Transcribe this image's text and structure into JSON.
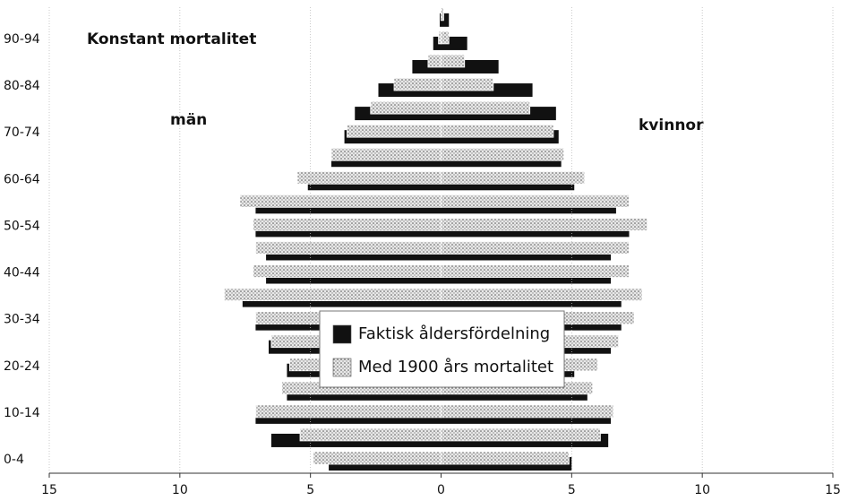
{
  "chart_data": {
    "type": "pyramid",
    "title": "Konstant mortalitet",
    "left_label": "män",
    "right_label": "kvinnor",
    "categories": [
      "0-4",
      null,
      "10-14",
      null,
      "20-24",
      null,
      "30-34",
      null,
      "40-44",
      null,
      "50-54",
      null,
      "60-64",
      null,
      "70-74",
      null,
      "80-84",
      null,
      "90-94",
      null
    ],
    "series": [
      {
        "name": "Faktisk åldersfördelning",
        "color": "#111111",
        "pattern": false,
        "men": [
          4.3,
          6.5,
          7.1,
          5.9,
          5.9,
          6.6,
          7.1,
          7.6,
          6.7,
          6.7,
          7.1,
          7.1,
          5.1,
          4.2,
          3.7,
          3.3,
          2.4,
          1.1,
          0.3,
          0.05
        ],
        "women": [
          5.0,
          6.4,
          6.5,
          5.6,
          5.1,
          6.5,
          6.9,
          6.9,
          6.5,
          6.5,
          7.2,
          6.7,
          5.1,
          4.6,
          4.5,
          4.4,
          3.5,
          2.2,
          1.0,
          0.3
        ]
      },
      {
        "name": "Med 1900 års mortalitet",
        "color": "#9a9a9a",
        "pattern": true,
        "men": [
          4.9,
          5.4,
          7.1,
          6.1,
          5.8,
          6.5,
          7.1,
          8.3,
          7.2,
          7.1,
          7.2,
          7.7,
          5.5,
          4.2,
          3.6,
          2.7,
          1.8,
          0.5,
          0.1,
          0.0
        ],
        "women": [
          4.9,
          6.1,
          6.6,
          5.8,
          6.0,
          6.8,
          7.4,
          7.7,
          7.2,
          7.2,
          7.9,
          7.2,
          5.5,
          4.7,
          4.3,
          3.4,
          2.0,
          0.9,
          0.3,
          0.1
        ]
      }
    ],
    "xlim": [
      -15,
      15
    ],
    "xticks": [
      {
        "value": -15,
        "label": "15"
      },
      {
        "value": -10,
        "label": "10"
      },
      {
        "value": -5,
        "label": "5"
      },
      0,
      5,
      10,
      15
    ],
    "grid": true
  }
}
